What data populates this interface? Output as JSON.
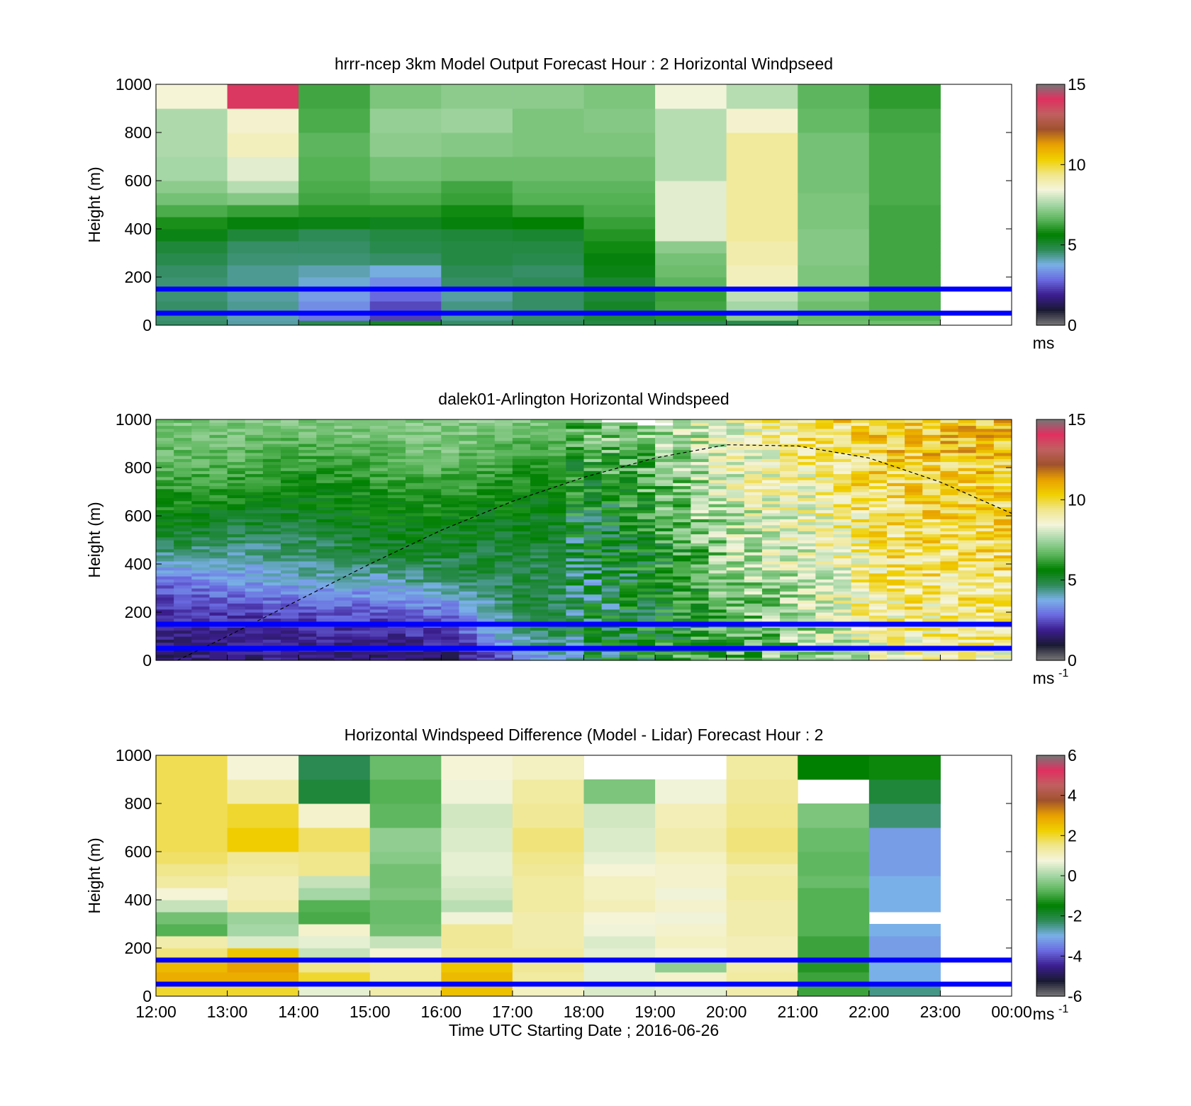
{
  "figure": {
    "xlabel": "Time UTC  Starting Date ; 2016-06-26",
    "xticks": [
      "12:00",
      "13:00",
      "14:00",
      "15:00",
      "16:00",
      "17:00",
      "18:00",
      "19:00",
      "20:00",
      "21:00",
      "22:00",
      "23:00",
      "00:00"
    ],
    "overlay_lines_m": [
      50,
      150
    ],
    "colors": {
      "overlay_line": "#0000ff",
      "colorbar_stops": [
        "#777777",
        "#1a1a33",
        "#3b1d8f",
        "#6a6ae0",
        "#7ab0e8",
        "#2e8b57",
        "#008000",
        "#5ab55a",
        "#a5d6a5",
        "#f5f5dc",
        "#f0e68c",
        "#f0d000",
        "#e8a000",
        "#a0522d",
        "#c06060",
        "#e03060",
        "#777777"
      ]
    }
  },
  "chart_data": [
    {
      "type": "heatmap",
      "title": "hrrr-ncep 3km Model Output   Forecast Hour : 2 Horizontal Windpseed",
      "ylabel": "Height (m)",
      "yticks": [
        "0",
        "200",
        "400",
        "600",
        "800",
        "1000"
      ],
      "ylim": [
        0,
        1000
      ],
      "xlim_hours": [
        12,
        24
      ],
      "colorbar": {
        "min": 0,
        "max": 15,
        "ticks": [
          "0",
          "5",
          "10",
          "15"
        ],
        "units": "ms"
      },
      "columns_hours": [
        12,
        13,
        14,
        15,
        16,
        17,
        18,
        19,
        20,
        21,
        22
      ],
      "height_bins_m": [
        0,
        20,
        50,
        100,
        150,
        200,
        250,
        300,
        350,
        400,
        450,
        500,
        550,
        600,
        700,
        800,
        900,
        1000
      ],
      "values": [
        [
          4.6,
          4.2,
          4.8,
          5.2,
          4.6,
          4.7,
          4.9,
          4.7,
          4.8,
          6.8,
          6.8
        ],
        [
          4.5,
          4.1,
          3.0,
          2.3,
          4.3,
          4.6,
          5.0,
          6.0,
          7.2,
          6.7,
          6.5
        ],
        [
          4.6,
          4.3,
          3.3,
          2.4,
          4.4,
          4.6,
          5.2,
          6.3,
          7.5,
          6.8,
          6.4
        ],
        [
          4.5,
          4.2,
          3.5,
          2.8,
          4.2,
          4.6,
          5.0,
          6.2,
          7.8,
          7.0,
          6.4
        ],
        [
          4.5,
          4.3,
          3.9,
          3.3,
          4.6,
          4.7,
          5.1,
          6.6,
          8.8,
          7.0,
          6.3
        ],
        [
          4.6,
          4.3,
          4.1,
          3.8,
          4.7,
          4.6,
          5.4,
          6.8,
          8.8,
          7.0,
          6.3
        ],
        [
          4.8,
          4.5,
          4.5,
          4.6,
          4.9,
          4.8,
          5.5,
          6.9,
          9.0,
          7.1,
          6.3
        ],
        [
          5.0,
          4.6,
          4.6,
          4.8,
          4.9,
          4.9,
          5.8,
          7.2,
          9.0,
          7.1,
          6.3
        ],
        [
          5.4,
          5.0,
          4.7,
          4.9,
          5.0,
          5.1,
          6.0,
          8.2,
          9.2,
          7.1,
          6.3
        ],
        [
          5.9,
          5.5,
          5.4,
          5.3,
          5.5,
          5.6,
          6.2,
          8.2,
          9.2,
          7.0,
          6.3
        ],
        [
          6.4,
          6.2,
          6.0,
          6.0,
          5.8,
          6.1,
          6.4,
          8.2,
          9.2,
          7.0,
          6.3
        ],
        [
          6.9,
          7.1,
          6.3,
          6.4,
          6.2,
          6.5,
          6.5,
          8.2,
          9.2,
          7.0,
          6.4
        ],
        [
          7.2,
          7.7,
          6.4,
          6.6,
          6.3,
          6.6,
          6.6,
          8.2,
          9.2,
          6.9,
          6.4
        ],
        [
          7.5,
          8.2,
          6.5,
          6.9,
          6.8,
          6.8,
          6.8,
          7.7,
          9.2,
          6.9,
          6.4
        ],
        [
          7.6,
          8.8,
          6.6,
          7.2,
          7.1,
          7.0,
          7.0,
          7.7,
          9.2,
          6.9,
          6.4
        ],
        [
          7.6,
          8.6,
          6.4,
          7.3,
          7.4,
          7.0,
          7.1,
          7.7,
          8.6,
          6.7,
          6.3
        ],
        [
          8.5,
          13.9,
          6.3,
          7.0,
          7.2,
          7.2,
          7.0,
          8.4,
          7.7,
          6.6,
          6.1
        ]
      ]
    },
    {
      "type": "heatmap",
      "title": "dalek01-Arlington  Horizontal Windspeed",
      "ylabel": "Height (m)",
      "yticks": [
        "0",
        "200",
        "400",
        "600",
        "800",
        "1000"
      ],
      "ylim": [
        0,
        1000
      ],
      "xlim_hours": [
        12,
        24
      ],
      "colorbar": {
        "min": 0,
        "max": 15,
        "ticks": [
          "0",
          "5",
          "10",
          "15"
        ],
        "units": "ms",
        "units_exp": "-1"
      },
      "sampling": {
        "start_hour": 12,
        "step_hours": 0.25,
        "steps": 48,
        "bin_m": 12.5,
        "note_hidden": ""
      },
      "overlay_curve": {
        "style": "dashed",
        "x_hours": [
          12.3,
          13,
          14,
          15,
          16,
          17,
          18,
          19,
          20,
          21,
          22,
          23,
          24
        ],
        "y_m": [
          0,
          100,
          250,
          400,
          540,
          660,
          760,
          840,
          895,
          890,
          840,
          740,
          610
        ]
      },
      "values_by_hour_from_bottom": [
        [
          1.5,
          1.8,
          2.2,
          3.0,
          4.5,
          5.5,
          6.0,
          6.5,
          6.8,
          7.0
        ],
        [
          1.7,
          1.8,
          2.5,
          3.5,
          4.2,
          5.0,
          5.8,
          6.4,
          6.8,
          7.0
        ],
        [
          1.8,
          1.9,
          2.8,
          4.0,
          4.5,
          5.0,
          5.5,
          6.0,
          6.5,
          7.2
        ],
        [
          1.6,
          2.0,
          2.8,
          4.0,
          5.0,
          5.5,
          5.8,
          6.3,
          6.8,
          7.2
        ],
        [
          1.5,
          2.3,
          3.3,
          4.8,
          5.0,
          5.5,
          6.0,
          6.5,
          7.0,
          7.2
        ],
        [
          3.0,
          4.5,
          4.8,
          4.8,
          5.0,
          5.3,
          5.6,
          6.0,
          6.5,
          7.0
        ],
        [
          4.8,
          5.0,
          4.8,
          4.8,
          5.0,
          5.2,
          5.4,
          6.0,
          6.5,
          7.0
        ],
        [
          6.0,
          5.5,
          5.5,
          5.6,
          6.0,
          6.5,
          6.6,
          6.8,
          7.2,
          7.5
        ],
        [
          6.5,
          6.5,
          6.8,
          7.2,
          7.6,
          7.8,
          8.0,
          8.5,
          8.5,
          8.8
        ],
        [
          7.2,
          7.4,
          7.6,
          7.8,
          8.2,
          8.5,
          8.8,
          9.0,
          9.5,
          9.5
        ],
        [
          8.5,
          9.0,
          9.2,
          9.4,
          9.5,
          9.6,
          9.8,
          10.0,
          10.2,
          10.2
        ],
        [
          9.0,
          9.2,
          9.4,
          9.6,
          9.8,
          10.0,
          10.0,
          10.2,
          10.5,
          10.5
        ]
      ]
    },
    {
      "type": "heatmap",
      "title": "Horizontal Windspeed Difference (Model - Lidar) Forecast Hour : 2",
      "ylabel": "Height (m)",
      "yticks": [
        "0",
        "200",
        "400",
        "600",
        "800",
        "1000"
      ],
      "ylim": [
        0,
        1000
      ],
      "xlim_hours": [
        12,
        24
      ],
      "colorbar": {
        "min": -6,
        "max": 6,
        "ticks": [
          "-6",
          "-4",
          "-2",
          "0",
          "2",
          "4",
          "6"
        ],
        "units": "ms",
        "units_exp": "-1"
      },
      "columns_hours": [
        12,
        13,
        14,
        15,
        16,
        17,
        18,
        19,
        20,
        21,
        22
      ],
      "height_bins_m": [
        0,
        50,
        100,
        150,
        200,
        250,
        300,
        350,
        400,
        450,
        500,
        550,
        600,
        700,
        800,
        900,
        1000
      ],
      "values": [
        [
          2.0,
          2.0,
          0.6,
          1.2,
          2.5,
          1.0,
          0.5,
          0.6,
          1.2,
          -1.0,
          -2.5
        ],
        [
          2.8,
          2.8,
          2.0,
          1.3,
          2.6,
          1.3,
          0.6,
          0.9,
          1.3,
          -1.0,
          -3.0
        ],
        [
          2.6,
          3.0,
          1.5,
          1.3,
          2.4,
          1.4,
          0.6,
          -0.2,
          1.2,
          -1.2,
          -3.0
        ],
        [
          1.6,
          2.4,
          0.3,
          0.8,
          1.3,
          1.3,
          0.6,
          0.8,
          1.1,
          -1.0,
          -3.2
        ],
        [
          1.2,
          0.5,
          0.6,
          0.3,
          1.4,
          1.2,
          0.5,
          1.0,
          1.1,
          -1.0,
          -3.2
        ],
        [
          -0.8,
          0.0,
          0.9,
          -0.5,
          1.4,
          1.2,
          0.7,
          0.9,
          1.2,
          -0.8,
          -3.0
        ],
        [
          -0.5,
          -0.1,
          -0.9,
          -0.6,
          0.7,
          1.2,
          0.8,
          0.7,
          1.2,
          -0.8,
          null
        ],
        [
          0.3,
          1.2,
          -0.8,
          -0.6,
          0.2,
          1.3,
          1.1,
          0.9,
          1.2,
          -0.8,
          -3.0
        ],
        [
          0.8,
          1.1,
          0.0,
          -0.4,
          0.4,
          1.3,
          1.0,
          0.7,
          1.3,
          -0.8,
          -3.0
        ],
        [
          1.3,
          1.1,
          0.3,
          -0.5,
          0.5,
          1.3,
          1.0,
          0.9,
          1.3,
          -0.6,
          -3.0
        ],
        [
          1.5,
          1.3,
          1.5,
          -0.5,
          0.6,
          1.4,
          0.8,
          0.9,
          1.2,
          -0.7,
          -3.2
        ],
        [
          1.7,
          1.4,
          1.5,
          -0.3,
          0.6,
          1.5,
          0.6,
          1.0,
          1.5,
          -0.7,
          -3.2
        ],
        [
          1.8,
          2.3,
          1.7,
          -0.2,
          0.5,
          1.6,
          0.5,
          1.2,
          1.6,
          -0.6,
          -3.2
        ],
        [
          1.8,
          2.0,
          0.9,
          -0.7,
          0.4,
          1.4,
          0.4,
          1.1,
          1.5,
          -0.4,
          -2.4
        ],
        [
          1.8,
          1.2,
          -2.0,
          -0.8,
          0.7,
          1.3,
          -0.4,
          0.7,
          1.4,
          null,
          -2.0
        ],
        [
          1.8,
          0.8,
          -2.2,
          -0.6,
          0.8,
          1.0,
          null,
          null,
          1.3,
          -1.5,
          -1.4
        ]
      ]
    }
  ]
}
